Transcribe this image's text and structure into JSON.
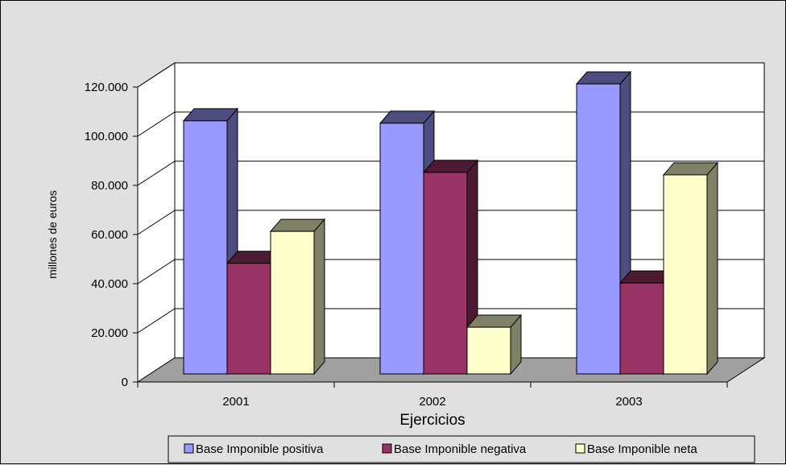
{
  "chart_data": {
    "type": "bar",
    "style": "3d-clustered-column",
    "title": "",
    "xlabel": "Ejercicios",
    "ylabel": "millones de euros",
    "categories": [
      "2001",
      "2002",
      "2003"
    ],
    "ylim": [
      0,
      120000
    ],
    "ytick_values": [
      0,
      20000,
      40000,
      60000,
      80000,
      100000,
      120000
    ],
    "ytick_labels": [
      "0",
      "20.000",
      "40.000",
      "60.000",
      "80.000",
      "100.000",
      "120.000"
    ],
    "grid": true,
    "legend_position": "bottom",
    "series": [
      {
        "name": "Base Imponible positiva",
        "values": [
          103000,
          102000,
          118000
        ],
        "color": "#9999ff",
        "side_color": "#4d4d80"
      },
      {
        "name": "Base Imponible negativa",
        "values": [
          45000,
          82000,
          37000
        ],
        "color": "#993366",
        "side_color": "#4d1a33"
      },
      {
        "name": "Base Imponible neta",
        "values": [
          58000,
          19000,
          81000
        ],
        "color": "#ffffcc",
        "side_color": "#808066"
      }
    ]
  }
}
